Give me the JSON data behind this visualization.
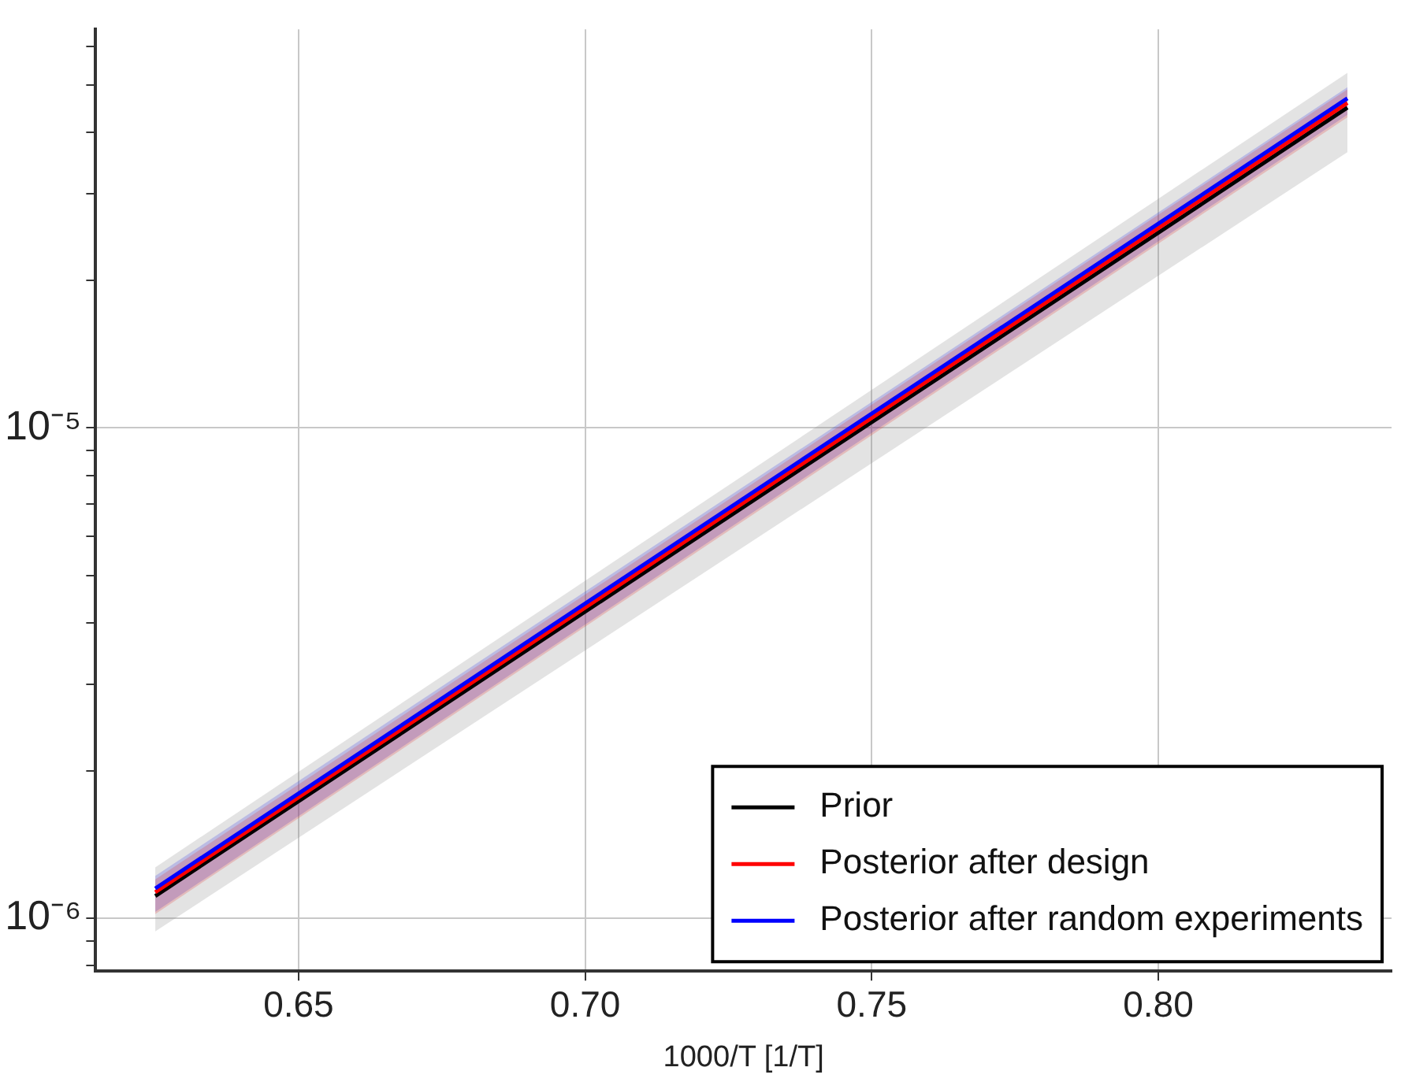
{
  "chart_data": {
    "type": "line",
    "xlabel": "1000/T [1/T]",
    "log": "y",
    "grid": true,
    "legend": "bottom right",
    "line_style": "solid",
    "marker": "none",
    "xlim": [
      0.6146,
      0.8407
    ],
    "xticks": [
      {
        "value": 0.65,
        "label": "0.65"
      },
      {
        "value": 0.7,
        "label": "0.70"
      },
      {
        "value": 0.75,
        "label": "0.75"
      },
      {
        "value": 0.8,
        "label": "0.80"
      }
    ],
    "ylim": [
      7.8e-07,
      6.5e-05
    ],
    "yticks": [
      {
        "value": 8e-07,
        "label": null
      },
      {
        "value": 9e-07,
        "label": null
      },
      {
        "value": 1e-06,
        "label": "10⁻⁶"
      },
      {
        "value": 2e-06,
        "label": null
      },
      {
        "value": 3e-06,
        "label": null
      },
      {
        "value": 4e-06,
        "label": null
      },
      {
        "value": 5e-06,
        "label": null
      },
      {
        "value": 6e-06,
        "label": null
      },
      {
        "value": 7e-06,
        "label": null
      },
      {
        "value": 8e-06,
        "label": null
      },
      {
        "value": 9e-06,
        "label": null
      },
      {
        "value": 1e-05,
        "label": "10⁻⁵"
      },
      {
        "value": 2e-05,
        "label": null
      },
      {
        "value": 3e-05,
        "label": null
      },
      {
        "value": 4e-05,
        "label": null
      },
      {
        "value": 5e-05,
        "label": null
      },
      {
        "value": 6e-05,
        "label": null
      }
    ],
    "x": [
      0.625,
      0.833
    ],
    "series": [
      {
        "name": "Prior",
        "color": "#000000",
        "values": [
          1.11e-06,
          4.5e-05
        ],
        "lower": [
          9.4e-07,
          3.65e-05
        ],
        "upper": [
          1.27e-06,
          5.3e-05
        ]
      },
      {
        "name": "Posterior after design",
        "color": "#ff0000",
        "values": [
          1.13e-06,
          4.6e-05
        ],
        "lower": [
          1.02e-06,
          4.3e-05
        ],
        "upper": [
          1.2e-06,
          4.9e-05
        ]
      },
      {
        "name": "Posterior after random experiments",
        "color": "#0000ff",
        "values": [
          1.15e-06,
          4.7e-05
        ],
        "lower": [
          1.03e-06,
          4.35e-05
        ],
        "upper": [
          1.22e-06,
          4.95e-05
        ]
      }
    ]
  }
}
